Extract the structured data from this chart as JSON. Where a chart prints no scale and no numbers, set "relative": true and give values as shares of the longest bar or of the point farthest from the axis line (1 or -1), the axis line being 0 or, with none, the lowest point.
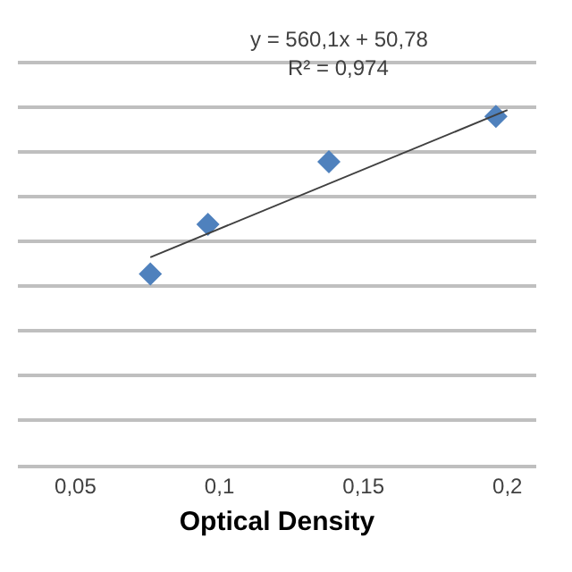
{
  "chart_data": {
    "type": "scatter",
    "xlabel": "Optical Density",
    "relative": true,
    "grid": "y",
    "legend": false,
    "xlim": [
      0.03,
      0.21
    ],
    "xticks": [
      {
        "value": 0.05,
        "label": "0,05"
      },
      {
        "value": 0.1,
        "label": "0,1"
      },
      {
        "value": 0.15,
        "label": "0,15"
      },
      {
        "value": 0.2,
        "label": "0,2"
      }
    ],
    "tick_labels": "x",
    "series": [
      {
        "color": "#4f81bd",
        "marker": "diamond",
        "x": [
          0.076,
          0.096,
          0.138,
          0.196
        ],
        "values": [
          0.538,
          0.678,
          0.854,
          0.982
        ]
      },
      {
        "type": "line",
        "color": "#404040",
        "marker": "none",
        "line_style": "solid",
        "x": [
          0.076,
          0.2
        ],
        "values": [
          0.585,
          1
        ]
      }
    ],
    "annotations": [
      "y = 560,1x + 50,78",
      "R² = 0,974"
    ]
  }
}
